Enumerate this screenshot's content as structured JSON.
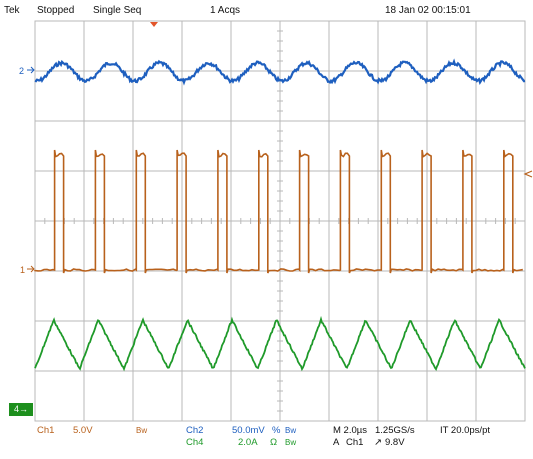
{
  "header": {
    "brand": "Tek",
    "state": "Stopped",
    "mode": "Single Seq",
    "acqs": "1 Acqs",
    "datetime": "18 Jan 02 00:15:01"
  },
  "markers": {
    "ch2": "2",
    "ch1": "1",
    "ch4": "4"
  },
  "footer": {
    "ch1_name": "Ch1",
    "ch1_scale": "5.0V",
    "ch1_bw": "Bw",
    "ch2_name": "Ch2",
    "ch2_scale": "50.0mV",
    "ch2_unit_glyph": "%",
    "ch2_bw": "Bw",
    "ch4_name": "Ch4",
    "ch4_scale": "2.0A",
    "ch4_unit_glyph": "Ω",
    "ch4_bw": "Bw",
    "timebase": "M 2.0µs",
    "sample_rate": "1.25GS/s",
    "interval": "IT 20.0ps/pt",
    "trigger_label": "A",
    "trigger_source": "Ch1",
    "trigger_slope": "↗",
    "trigger_level": "9.8V"
  },
  "colors": {
    "ch1": "#b8611c",
    "ch2": "#1e5fbf",
    "ch4": "#1f9a2a",
    "grid": "#b9b9b9",
    "trigger_marker": "#e2552a"
  },
  "waveforms": {
    "ch2_cycles": 10,
    "ch1_pulses": 12,
    "ch4_cycles": 11
  }
}
